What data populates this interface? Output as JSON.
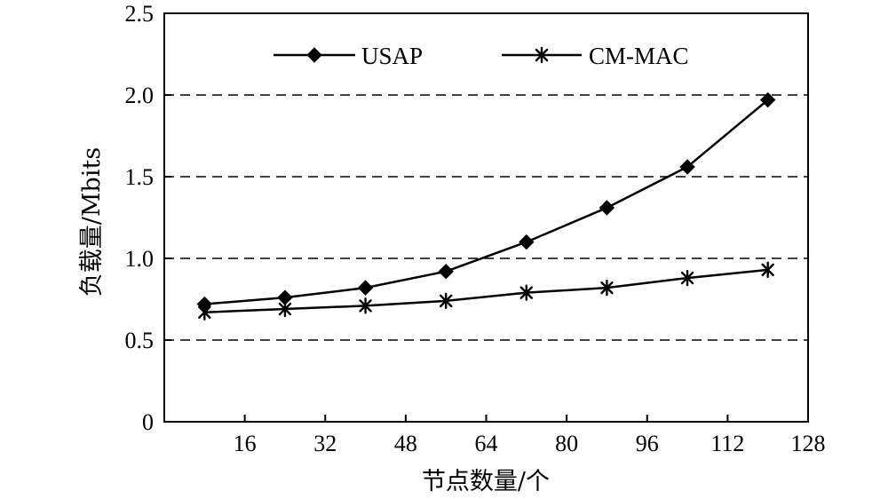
{
  "chart_data": {
    "type": "line",
    "xlabel": "节点数量/个",
    "ylabel": "负载量/Mbits",
    "xlim": [
      0,
      128
    ],
    "ylim": [
      0,
      2.5
    ],
    "x_ticks": [
      16,
      32,
      48,
      64,
      80,
      96,
      112,
      128
    ],
    "y_ticks": [
      0,
      0.5,
      1.0,
      1.5,
      2.0,
      2.5
    ],
    "y_tick_labels": [
      "0",
      "0.5",
      "1.0",
      "1.5",
      "2.0",
      "2.5"
    ],
    "grid": "horizontal dashed at 0.5, 1.0, 1.5, 2.0",
    "legend_placement": "top",
    "x": [
      8,
      24,
      40,
      56,
      72,
      88,
      104,
      120
    ],
    "series": [
      {
        "name": "USAP",
        "marker": "diamond",
        "values": [
          0.72,
          0.76,
          0.82,
          0.92,
          1.1,
          1.31,
          1.56,
          1.97
        ]
      },
      {
        "name": "CM-MAC",
        "marker": "asterisk",
        "values": [
          0.67,
          0.69,
          0.71,
          0.74,
          0.79,
          0.82,
          0.88,
          0.93
        ]
      }
    ],
    "colors": {
      "line": "#000000",
      "grid": "#000000",
      "background": "#ffffff"
    }
  }
}
